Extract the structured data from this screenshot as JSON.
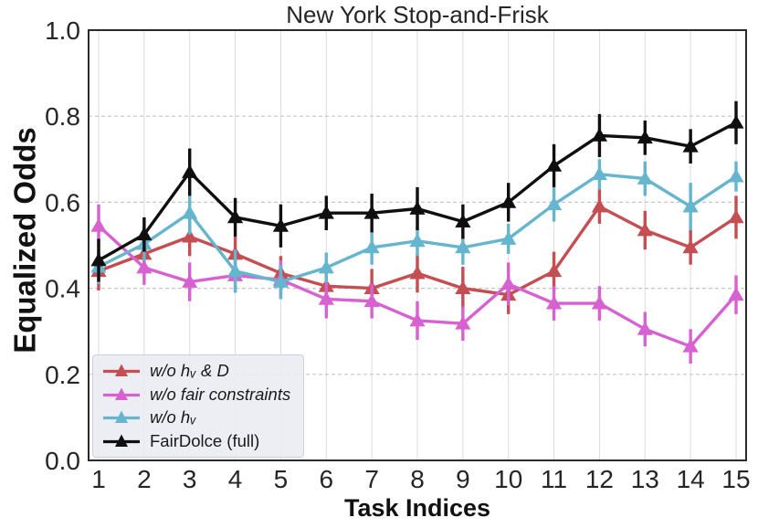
{
  "chart_data": {
    "type": "line",
    "title": "New York Stop-and-Frisk",
    "xlabel": "Task Indices",
    "ylabel": "Equalized Odds",
    "marker": "triangle-up",
    "error_bars": true,
    "grid": true,
    "legend_position": "lower left",
    "x": [
      1,
      2,
      3,
      4,
      5,
      6,
      7,
      8,
      9,
      10,
      11,
      12,
      13,
      14,
      15
    ],
    "ylim": [
      0.0,
      1.0
    ],
    "yticks": [
      0.0,
      0.2,
      0.4,
      0.6,
      0.8,
      1.0
    ],
    "series": [
      {
        "name": "w/o hᵥ & D",
        "color": "#C44E52",
        "italic": true,
        "values": [
          0.44,
          0.48,
          0.52,
          0.48,
          0.435,
          0.405,
          0.4,
          0.435,
          0.4,
          0.385,
          0.44,
          0.59,
          0.535,
          0.495,
          0.565
        ],
        "err": [
          0.045,
          0.04,
          0.045,
          0.04,
          0.04,
          0.04,
          0.045,
          0.045,
          0.05,
          0.045,
          0.045,
          0.04,
          0.045,
          0.04,
          0.05
        ]
      },
      {
        "name": "w/o fair constraints",
        "color": "#D861D1",
        "italic": true,
        "values": [
          0.545,
          0.448,
          0.415,
          0.43,
          0.42,
          0.375,
          0.37,
          0.325,
          0.318,
          0.41,
          0.365,
          0.365,
          0.305,
          0.265,
          0.385
        ],
        "err": [
          0.05,
          0.04,
          0.045,
          0.04,
          0.045,
          0.045,
          0.04,
          0.045,
          0.04,
          0.05,
          0.04,
          0.04,
          0.04,
          0.04,
          0.045
        ]
      },
      {
        "name": "w/o hᵥ",
        "color": "#64B5CD",
        "italic": true,
        "values": [
          0.45,
          0.503,
          0.575,
          0.44,
          0.415,
          0.448,
          0.495,
          0.51,
          0.495,
          0.515,
          0.595,
          0.665,
          0.655,
          0.59,
          0.66
        ],
        "err": [
          0.04,
          0.04,
          0.05,
          0.05,
          0.04,
          0.035,
          0.04,
          0.035,
          0.04,
          0.035,
          0.04,
          0.035,
          0.04,
          0.055,
          0.035
        ]
      },
      {
        "name": "FairDolce (full)",
        "color": "#0f0f0f",
        "italic": false,
        "values": [
          0.465,
          0.525,
          0.67,
          0.565,
          0.545,
          0.575,
          0.575,
          0.585,
          0.555,
          0.6,
          0.685,
          0.755,
          0.75,
          0.73,
          0.785
        ],
        "err": [
          0.05,
          0.04,
          0.055,
          0.045,
          0.05,
          0.04,
          0.045,
          0.05,
          0.04,
          0.045,
          0.05,
          0.05,
          0.04,
          0.04,
          0.05
        ]
      }
    ]
  }
}
